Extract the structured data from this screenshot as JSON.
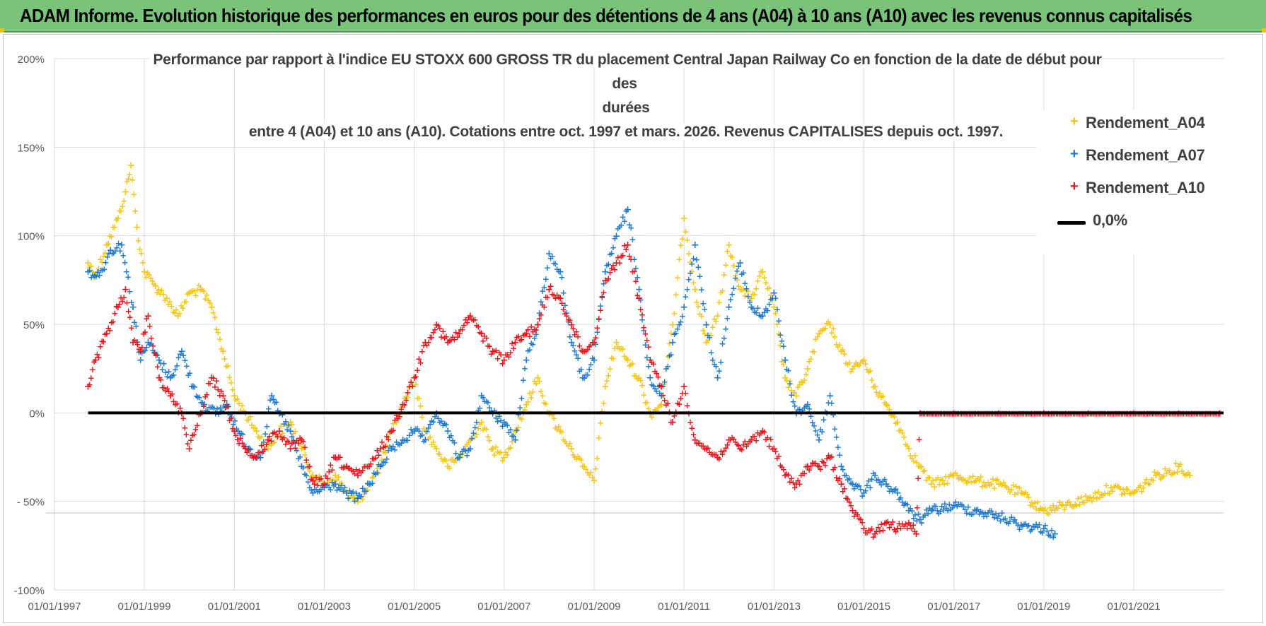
{
  "banner": {
    "text": "ADAM Informe. Evolution historique des performances en euros pour des détentions de 4 ans (A04) à 10 ans (A10) avec les revenus connus capitalisés"
  },
  "colors": {
    "banner_bg": "#79c37a",
    "A04": "#f5c518",
    "A07": "#1f7bd0",
    "A10": "#e8141b",
    "zero_line": "#000000"
  },
  "chart_data": {
    "type": "scatter",
    "title_lines": [
      "Performance par rapport à l'indice EU STOXX 600 GROSS TR  du placement Central Japan Railway Co en fonction de la date de début pour des",
      "durées",
      "entre 4 (A04) et 10 ans (A10). Cotations entre oct. 1997 et mars. 2026. Revenus CAPITALISES depuis oct. 1997."
    ],
    "x_axis": {
      "type": "date",
      "range": [
        "1997-01-01",
        "2022-12-31"
      ],
      "tick_labels": [
        "01/01/1997",
        "01/01/1999",
        "01/01/2001",
        "01/01/2003",
        "01/01/2005",
        "01/01/2007",
        "01/01/2009",
        "01/01/2011",
        "01/01/2013",
        "01/01/2015",
        "01/01/2017",
        "01/01/2019",
        "01/01/2021"
      ]
    },
    "y_axis": {
      "unit": "%",
      "range": [
        -100,
        200
      ],
      "tick_labels": [
        "200%",
        "150%",
        "100%",
        "50%",
        "0%",
        "- 50%",
        "-100%"
      ]
    },
    "grid": "vertical and horizontal",
    "legend_position": "top-right",
    "legend": [
      "Rendement_A04",
      "Rendement_A07",
      "Rendement_A10",
      "0,0%"
    ],
    "series": [
      {
        "name": "Rendement_A04",
        "color": "#f5c518",
        "points": [
          [
            "1997-10-01",
            85
          ],
          [
            "1997-12-01",
            78
          ],
          [
            "1998-03-01",
            95
          ],
          [
            "1998-06-01",
            110
          ],
          [
            "1998-08-01",
            125
          ],
          [
            "1998-09-15",
            140
          ],
          [
            "1998-11-01",
            105
          ],
          [
            "1999-01-01",
            80
          ],
          [
            "1999-04-01",
            72
          ],
          [
            "1999-07-01",
            65
          ],
          [
            "1999-10-01",
            55
          ],
          [
            "2000-01-01",
            68
          ],
          [
            "2000-04-01",
            70
          ],
          [
            "2000-07-01",
            60
          ],
          [
            "2000-10-01",
            35
          ],
          [
            "2001-01-01",
            10
          ],
          [
            "2001-04-01",
            0
          ],
          [
            "2001-07-01",
            -10
          ],
          [
            "2001-10-01",
            -20
          ],
          [
            "2002-01-01",
            -10
          ],
          [
            "2002-04-01",
            -5
          ],
          [
            "2002-07-01",
            -20
          ],
          [
            "2002-10-01",
            -35
          ],
          [
            "2003-01-01",
            -40
          ],
          [
            "2003-04-01",
            -35
          ],
          [
            "2003-07-01",
            -45
          ],
          [
            "2003-10-01",
            -50
          ],
          [
            "2004-01-01",
            -40
          ],
          [
            "2004-04-01",
            -30
          ],
          [
            "2004-07-01",
            -10
          ],
          [
            "2004-10-01",
            5
          ],
          [
            "2005-01-01",
            20
          ],
          [
            "2005-04-01",
            -10
          ],
          [
            "2005-07-01",
            -20
          ],
          [
            "2005-10-01",
            -30
          ],
          [
            "2006-01-01",
            -25
          ],
          [
            "2006-04-01",
            -15
          ],
          [
            "2006-07-01",
            -5
          ],
          [
            "2006-10-01",
            -20
          ],
          [
            "2007-01-01",
            -25
          ],
          [
            "2007-04-01",
            -10
          ],
          [
            "2007-07-01",
            5
          ],
          [
            "2007-10-01",
            20
          ],
          [
            "2008-01-01",
            0
          ],
          [
            "2008-04-01",
            -10
          ],
          [
            "2008-07-01",
            -20
          ],
          [
            "2008-10-01",
            -30
          ],
          [
            "2009-01-01",
            -38
          ],
          [
            "2009-04-01",
            15
          ],
          [
            "2009-07-01",
            40
          ],
          [
            "2009-10-01",
            30
          ],
          [
            "2010-01-01",
            20
          ],
          [
            "2010-04-01",
            0
          ],
          [
            "2010-07-01",
            5
          ],
          [
            "2010-10-01",
            50
          ],
          [
            "2011-01-01",
            110
          ],
          [
            "2011-04-01",
            70
          ],
          [
            "2011-07-01",
            40
          ],
          [
            "2011-10-01",
            55
          ],
          [
            "2012-01-01",
            95
          ],
          [
            "2012-04-01",
            70
          ],
          [
            "2012-07-01",
            65
          ],
          [
            "2012-10-01",
            80
          ],
          [
            "2013-01-01",
            60
          ],
          [
            "2013-04-01",
            20
          ],
          [
            "2013-07-01",
            10
          ],
          [
            "2013-10-01",
            25
          ],
          [
            "2014-01-01",
            45
          ],
          [
            "2014-04-01",
            50
          ],
          [
            "2014-07-01",
            35
          ],
          [
            "2014-10-01",
            25
          ],
          [
            "2015-01-01",
            30
          ],
          [
            "2015-04-01",
            15
          ],
          [
            "2015-07-01",
            5
          ],
          [
            "2015-10-01",
            -5
          ],
          [
            "2016-01-01",
            -20
          ],
          [
            "2016-04-01",
            -30
          ],
          [
            "2016-07-01",
            -40
          ],
          [
            "2016-10-01",
            -38
          ],
          [
            "2017-01-01",
            -35
          ],
          [
            "2017-07-01",
            -38
          ],
          [
            "2018-01-01",
            -40
          ],
          [
            "2018-07-01",
            -45
          ],
          [
            "2019-01-01",
            -55
          ],
          [
            "2019-07-01",
            -52
          ],
          [
            "2020-01-01",
            -48
          ],
          [
            "2020-07-01",
            -42
          ],
          [
            "2021-01-01",
            -45
          ],
          [
            "2021-07-01",
            -35
          ],
          [
            "2022-01-01",
            -30
          ],
          [
            "2022-04-01",
            -35
          ]
        ]
      },
      {
        "name": "Rendement_A07",
        "color": "#1f7bd0",
        "points": [
          [
            "1997-10-01",
            80
          ],
          [
            "1998-01-01",
            78
          ],
          [
            "1998-04-01",
            92
          ],
          [
            "1998-07-01",
            95
          ],
          [
            "1998-10-01",
            60
          ],
          [
            "1998-12-01",
            30
          ],
          [
            "1999-02-01",
            40
          ],
          [
            "1999-05-01",
            30
          ],
          [
            "1999-08-01",
            20
          ],
          [
            "1999-11-01",
            35
          ],
          [
            "2000-02-01",
            15
          ],
          [
            "2000-05-01",
            5
          ],
          [
            "2000-08-01",
            0
          ],
          [
            "2000-11-01",
            5
          ],
          [
            "2001-02-01",
            -10
          ],
          [
            "2001-05-01",
            -20
          ],
          [
            "2001-08-01",
            -25
          ],
          [
            "2001-11-01",
            10
          ],
          [
            "2002-01-01",
            0
          ],
          [
            "2002-04-01",
            -10
          ],
          [
            "2002-07-01",
            -30
          ],
          [
            "2002-10-01",
            -45
          ],
          [
            "2003-01-01",
            -42
          ],
          [
            "2003-04-01",
            -40
          ],
          [
            "2003-07-01",
            -45
          ],
          [
            "2003-10-01",
            -48
          ],
          [
            "2004-01-01",
            -40
          ],
          [
            "2004-04-01",
            -30
          ],
          [
            "2004-07-01",
            -20
          ],
          [
            "2004-10-01",
            -15
          ],
          [
            "2005-01-01",
            -10
          ],
          [
            "2005-04-01",
            -15
          ],
          [
            "2005-07-01",
            0
          ],
          [
            "2005-10-01",
            -10
          ],
          [
            "2006-01-01",
            -25
          ],
          [
            "2006-04-01",
            -20
          ],
          [
            "2006-07-01",
            10
          ],
          [
            "2006-10-01",
            0
          ],
          [
            "2007-01-01",
            -5
          ],
          [
            "2007-04-01",
            -15
          ],
          [
            "2007-07-01",
            30
          ],
          [
            "2007-10-01",
            50
          ],
          [
            "2008-01-01",
            90
          ],
          [
            "2008-04-01",
            80
          ],
          [
            "2008-07-01",
            40
          ],
          [
            "2008-10-01",
            20
          ],
          [
            "2009-01-01",
            30
          ],
          [
            "2009-04-01",
            80
          ],
          [
            "2009-07-01",
            100
          ],
          [
            "2009-10-01",
            115
          ],
          [
            "2010-01-01",
            70
          ],
          [
            "2010-04-01",
            20
          ],
          [
            "2010-07-01",
            10
          ],
          [
            "2010-10-01",
            40
          ],
          [
            "2011-01-01",
            60
          ],
          [
            "2011-04-01",
            95
          ],
          [
            "2011-07-01",
            50
          ],
          [
            "2011-10-01",
            20
          ],
          [
            "2012-01-01",
            60
          ],
          [
            "2012-04-01",
            85
          ],
          [
            "2012-07-01",
            60
          ],
          [
            "2012-10-01",
            55
          ],
          [
            "2013-01-01",
            68
          ],
          [
            "2013-04-01",
            30
          ],
          [
            "2013-07-01",
            0
          ],
          [
            "2013-10-01",
            5
          ],
          [
            "2014-01-01",
            -15
          ],
          [
            "2014-04-01",
            10
          ],
          [
            "2014-07-01",
            -30
          ],
          [
            "2014-10-01",
            -40
          ],
          [
            "2015-01-01",
            -45
          ],
          [
            "2015-04-01",
            -35
          ],
          [
            "2015-07-01",
            -40
          ],
          [
            "2015-10-01",
            -45
          ],
          [
            "2016-01-01",
            -55
          ],
          [
            "2016-04-01",
            -60
          ],
          [
            "2016-07-01",
            -55
          ],
          [
            "2017-01-01",
            -52
          ],
          [
            "2017-07-01",
            -55
          ],
          [
            "2018-01-01",
            -58
          ],
          [
            "2018-07-01",
            -63
          ],
          [
            "2019-01-01",
            -65
          ],
          [
            "2019-04-01",
            -68
          ]
        ]
      },
      {
        "name": "Rendement_A10",
        "color": "#e8141b",
        "points": [
          [
            "1997-10-01",
            15
          ],
          [
            "1997-12-01",
            30
          ],
          [
            "1998-03-01",
            45
          ],
          [
            "1998-06-01",
            60
          ],
          [
            "1998-08-01",
            70
          ],
          [
            "1998-10-01",
            40
          ],
          [
            "1998-12-01",
            35
          ],
          [
            "1999-02-01",
            55
          ],
          [
            "1999-05-01",
            20
          ],
          [
            "1999-08-01",
            10
          ],
          [
            "1999-11-01",
            0
          ],
          [
            "2000-01-01",
            -20
          ],
          [
            "2000-04-01",
            0
          ],
          [
            "2000-07-01",
            20
          ],
          [
            "2000-10-01",
            10
          ],
          [
            "2001-01-01",
            -10
          ],
          [
            "2001-04-01",
            -20
          ],
          [
            "2001-07-01",
            -25
          ],
          [
            "2001-10-01",
            -15
          ],
          [
            "2002-01-01",
            -10
          ],
          [
            "2002-04-01",
            -20
          ],
          [
            "2002-07-01",
            -15
          ],
          [
            "2002-10-01",
            -38
          ],
          [
            "2003-01-01",
            -40
          ],
          [
            "2003-04-01",
            -25
          ],
          [
            "2003-07-01",
            -30
          ],
          [
            "2003-10-01",
            -35
          ],
          [
            "2004-01-01",
            -30
          ],
          [
            "2004-04-01",
            -20
          ],
          [
            "2004-07-01",
            -10
          ],
          [
            "2004-10-01",
            5
          ],
          [
            "2005-01-01",
            20
          ],
          [
            "2005-04-01",
            40
          ],
          [
            "2005-07-01",
            50
          ],
          [
            "2005-10-01",
            40
          ],
          [
            "2006-01-01",
            45
          ],
          [
            "2006-04-01",
            55
          ],
          [
            "2006-07-01",
            45
          ],
          [
            "2006-10-01",
            35
          ],
          [
            "2007-01-01",
            30
          ],
          [
            "2007-04-01",
            40
          ],
          [
            "2007-07-01",
            45
          ],
          [
            "2007-10-01",
            50
          ],
          [
            "2008-01-01",
            70
          ],
          [
            "2008-04-01",
            65
          ],
          [
            "2008-07-01",
            50
          ],
          [
            "2008-10-01",
            35
          ],
          [
            "2009-01-01",
            40
          ],
          [
            "2009-04-01",
            75
          ],
          [
            "2009-07-01",
            85
          ],
          [
            "2009-10-01",
            95
          ],
          [
            "2010-01-01",
            65
          ],
          [
            "2010-04-01",
            30
          ],
          [
            "2010-07-01",
            15
          ],
          [
            "2010-10-01",
            -5
          ],
          [
            "2011-01-01",
            15
          ],
          [
            "2011-04-01",
            -15
          ],
          [
            "2011-07-01",
            -20
          ],
          [
            "2011-10-01",
            -25
          ],
          [
            "2012-01-01",
            -15
          ],
          [
            "2012-04-01",
            -20
          ],
          [
            "2012-07-01",
            -15
          ],
          [
            "2012-10-01",
            -10
          ],
          [
            "2013-01-01",
            -20
          ],
          [
            "2013-04-01",
            -35
          ],
          [
            "2013-07-01",
            -40
          ],
          [
            "2013-10-01",
            -30
          ],
          [
            "2014-01-01",
            -30
          ],
          [
            "2014-04-01",
            -25
          ],
          [
            "2014-07-01",
            -40
          ],
          [
            "2014-10-01",
            -55
          ],
          [
            "2015-01-01",
            -65
          ],
          [
            "2015-04-01",
            -68
          ],
          [
            "2015-07-01",
            -62
          ],
          [
            "2015-10-01",
            -65
          ],
          [
            "2016-01-01",
            -62
          ],
          [
            "2016-03-01",
            -68
          ],
          [
            "2016-04-01",
            0
          ],
          [
            "2017-01-01",
            0
          ],
          [
            "2018-01-01",
            0
          ],
          [
            "2019-01-01",
            0
          ],
          [
            "2020-01-01",
            0
          ],
          [
            "2021-01-01",
            0
          ],
          [
            "2022-01-01",
            0
          ],
          [
            "2022-12-01",
            0
          ]
        ]
      }
    ],
    "reference_line": {
      "name": "0,0%",
      "y": 0,
      "x_range": [
        "1997-10-01",
        "2022-12-31"
      ]
    }
  }
}
